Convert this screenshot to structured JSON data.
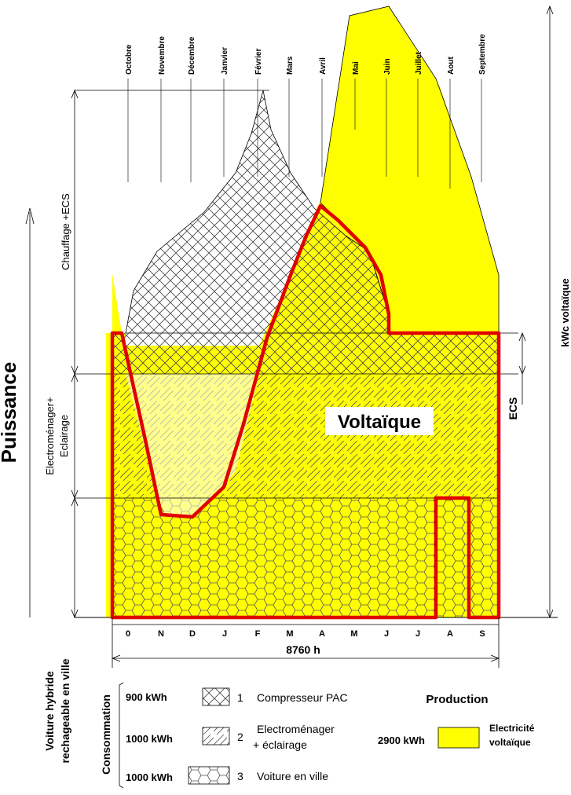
{
  "months_top": [
    "Octobre",
    "Novembre",
    "Décembre",
    "Janvier",
    "Février",
    "Mars",
    "Avril",
    "Mai",
    "Juin",
    "Juillet",
    "Aout",
    "Septembre"
  ],
  "months_bottom": [
    "0",
    "N",
    "D",
    "J",
    "F",
    "M",
    "A",
    "M",
    "J",
    "J",
    "A",
    "S"
  ],
  "duration_label": "8760 h",
  "y_axis_label": "Puissance",
  "left_labels": {
    "heating": "Chauffage +ECS",
    "appliances_line1": "Electroménager+",
    "appliances_line2": "Eclairage",
    "car_line1": "Voiture hybride",
    "car_line2": "rechageable en ville"
  },
  "right_labels": {
    "kwc": "kWc  voltaïque",
    "ecs": "ECS"
  },
  "center_label": "Voltaïque",
  "legend": {
    "title": "Consommation",
    "items": [
      {
        "kwh": "900 kWh",
        "num": "1",
        "label": "Compresseur PAC"
      },
      {
        "kwh": "1000 kWh",
        "num": "2",
        "label_line1": "Electroménager",
        "label_line2": "+ éclairage"
      },
      {
        "kwh": "1000 kWh",
        "num": "3",
        "label": "Voiture en ville"
      }
    ],
    "production_title": "Production",
    "production_kwh": "2900 kWh",
    "production_label_line1": "Electricité",
    "production_label_line2": "voltaïque"
  },
  "colors": {
    "solar_fill": "#ffff00",
    "consumption_outline": "#e00000"
  }
}
